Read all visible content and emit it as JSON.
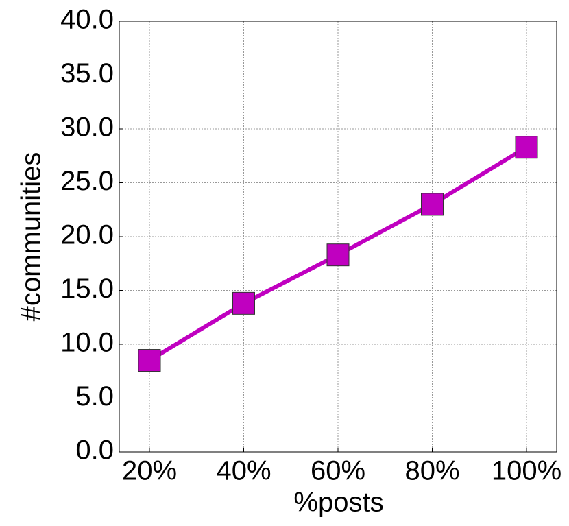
{
  "chart_data": {
    "type": "line",
    "x_label": "%posts",
    "y_label": "#communities",
    "categories": [
      "20%",
      "40%",
      "60%",
      "80%",
      "100%"
    ],
    "series": [
      {
        "color": "#c000c0",
        "values": [
          8.5,
          13.8,
          18.3,
          23.0,
          28.3
        ]
      }
    ],
    "ylim": [
      0,
      40
    ],
    "yticks": [
      {
        "value": 0,
        "label": "0.0"
      },
      {
        "value": 5,
        "label": "5.0"
      },
      {
        "value": 10,
        "label": "10.0"
      },
      {
        "value": 15,
        "label": "15.0"
      },
      {
        "value": 20,
        "label": "20.0"
      },
      {
        "value": 25,
        "label": "25.0"
      },
      {
        "value": 30,
        "label": "30.0"
      },
      {
        "value": 35,
        "label": "35.0"
      },
      {
        "value": 40,
        "label": "40.0"
      }
    ],
    "grid": true,
    "marker": "square"
  }
}
